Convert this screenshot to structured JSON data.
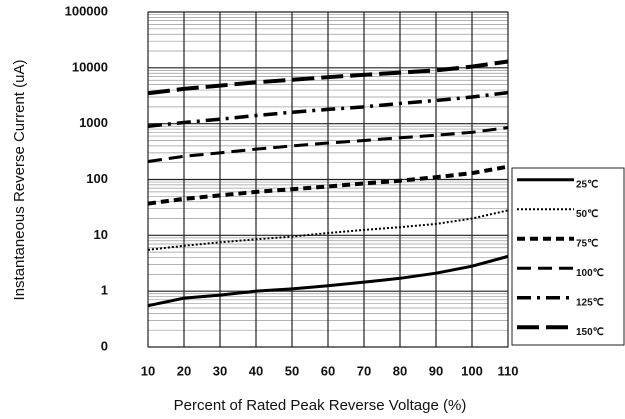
{
  "chart_data": {
    "type": "line",
    "x_label": "Percent of  Rated Peak Reverse Voltage (%)",
    "y_label": "Instantaneous Reverse Current (uA)",
    "x": [
      10,
      20,
      30,
      40,
      50,
      60,
      70,
      80,
      90,
      100,
      110
    ],
    "xlim": [
      10,
      110
    ],
    "xticks": [
      10,
      20,
      30,
      40,
      50,
      60,
      70,
      80,
      90,
      100,
      110
    ],
    "ylim": [
      0.1,
      100000
    ],
    "y_scale": "log",
    "minor_grid": true,
    "grid": true,
    "yticks": [
      {
        "value": 0.1,
        "label": "0"
      },
      1,
      10,
      100,
      1000,
      10000,
      100000
    ],
    "legend": "right",
    "series": [
      {
        "name": "25℃",
        "color": "#000000",
        "style": "solid",
        "values": [
          0.55,
          0.75,
          0.85,
          1.0,
          1.1,
          1.25,
          1.45,
          1.7,
          2.1,
          2.8,
          4.2
        ]
      },
      {
        "name": "50℃",
        "color": "#000000",
        "style": "dotted",
        "values": [
          5.5,
          6.5,
          7.5,
          8.5,
          9.5,
          11,
          12.5,
          14,
          16,
          20,
          28
        ]
      },
      {
        "name": "75℃",
        "color": "#000000",
        "style": "dashed",
        "values": [
          37,
          45,
          52,
          60,
          67,
          75,
          85,
          95,
          110,
          130,
          170
        ]
      },
      {
        "name": "100℃",
        "color": "#000000",
        "style": "long-dash",
        "values": [
          210,
          260,
          300,
          350,
          400,
          450,
          500,
          560,
          620,
          700,
          850
        ]
      },
      {
        "name": "125℃",
        "color": "#000000",
        "style": "dash-dot",
        "values": [
          900,
          1050,
          1200,
          1400,
          1600,
          1800,
          2000,
          2300,
          2600,
          3000,
          3600
        ]
      },
      {
        "name": "150℃",
        "color": "#000000",
        "style": "heavy-dash",
        "values": [
          3500,
          4200,
          4800,
          5500,
          6100,
          6800,
          7500,
          8200,
          9000,
          10500,
          13000
        ]
      }
    ]
  }
}
